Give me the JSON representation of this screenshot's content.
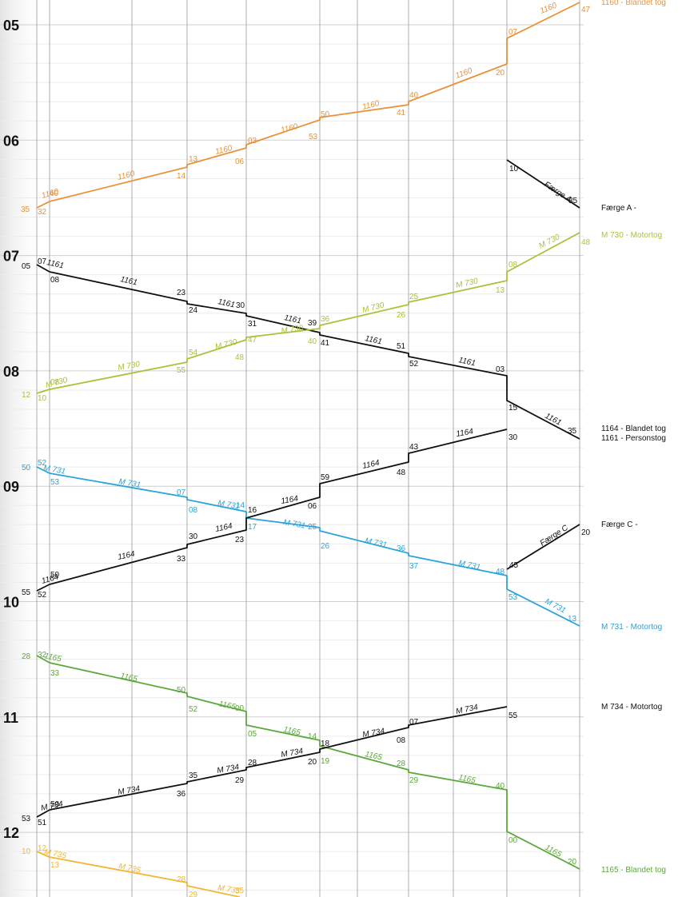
{
  "hours": [
    "05",
    "06",
    "07",
    "08",
    "09",
    "10",
    "11",
    "12"
  ],
  "colors": {
    "orange": "#e8923a",
    "black": "#111111",
    "lime": "#a9c23a",
    "blue": "#2aa3dc",
    "green": "#5aa83a",
    "yellow": "#f2b632"
  },
  "trains": [
    {
      "id": "t1160",
      "color": "orange",
      "points": [
        [
          46,
          260
        ],
        [
          62,
          252
        ],
        [
          234,
          209
        ],
        [
          234,
          206
        ],
        [
          308,
          185
        ],
        [
          308,
          181
        ],
        [
          400,
          150
        ],
        [
          400,
          147
        ],
        [
          511,
          131
        ],
        [
          511,
          127
        ],
        [
          634,
          80
        ],
        [
          634,
          48
        ],
        [
          725,
          3
        ]
      ],
      "times": [
        [
          "35",
          26,
          265
        ],
        [
          "32",
          47,
          268
        ],
        [
          "40",
          62,
          245
        ],
        [
          "14",
          221,
          223
        ],
        [
          "13",
          236,
          202
        ],
        [
          "06",
          294,
          205
        ],
        [
          "03",
          310,
          179
        ],
        [
          "53",
          386,
          174
        ],
        [
          "50",
          401,
          146
        ],
        [
          "41",
          496,
          144
        ],
        [
          "40",
          512,
          122
        ],
        [
          "20",
          620,
          94
        ],
        [
          "07",
          636,
          43
        ],
        [
          "47",
          727,
          15
        ]
      ],
      "labels": [
        [
          "1160",
          53,
          248,
          -16
        ],
        [
          "1160",
          148,
          225,
          -14
        ],
        [
          "1160",
          270,
          193,
          -14
        ],
        [
          "1160",
          352,
          166,
          -14
        ],
        [
          "1160",
          454,
          137,
          -14
        ],
        [
          "1160",
          571,
          98,
          -20
        ],
        [
          "1160",
          677,
          17,
          -22
        ]
      ],
      "legend": [
        {
          "text": "1160 - Blandet tog",
          "y": 6
        }
      ]
    },
    {
      "id": "tA",
      "color": "black",
      "points": [
        [
          634,
          200
        ],
        [
          725,
          260
        ]
      ],
      "times": [
        [
          "10",
          637,
          214
        ],
        [
          "35",
          711,
          254
        ]
      ],
      "labels": [
        [
          "Færge A",
          680,
          232,
          33
        ]
      ],
      "legend": [
        {
          "text": "Færge A -",
          "y": 263
        }
      ]
    },
    {
      "id": "t1161",
      "color": "black",
      "points": [
        [
          46,
          331
        ],
        [
          62,
          340
        ],
        [
          234,
          377
        ],
        [
          234,
          380
        ],
        [
          308,
          392
        ],
        [
          308,
          395
        ],
        [
          400,
          416
        ],
        [
          400,
          419
        ],
        [
          511,
          442
        ],
        [
          511,
          446
        ],
        [
          634,
          470
        ],
        [
          634,
          501
        ],
        [
          725,
          549
        ]
      ],
      "times": [
        [
          "05",
          27,
          336
        ],
        [
          "07",
          47,
          330
        ],
        [
          "08",
          63,
          353
        ],
        [
          "23",
          221,
          369
        ],
        [
          "24",
          236,
          391
        ],
        [
          "30",
          295,
          385
        ],
        [
          "31",
          310,
          408
        ],
        [
          "39",
          385,
          407
        ],
        [
          "41",
          401,
          432
        ],
        [
          "51",
          496,
          436
        ],
        [
          "52",
          512,
          458
        ],
        [
          "03",
          620,
          465
        ],
        [
          "15",
          636,
          513
        ],
        [
          "35",
          710,
          542
        ]
      ],
      "labels": [
        [
          "1161",
          58,
          331,
          12
        ],
        [
          "1161",
          150,
          352,
          12
        ],
        [
          "1161",
          272,
          380,
          12
        ],
        [
          "1161",
          355,
          400,
          12
        ],
        [
          "1161",
          456,
          426,
          12
        ],
        [
          "1161",
          573,
          453,
          12
        ],
        [
          "1161",
          681,
          522,
          28
        ]
      ],
      "legend": [
        {
          "text": "1164 - Blandet tog",
          "y": 539
        },
        {
          "text": "1161 - Personstog",
          "y": 551
        }
      ]
    },
    {
      "id": "tM730",
      "color": "lime",
      "points": [
        [
          46,
          492
        ],
        [
          62,
          487
        ],
        [
          234,
          453
        ],
        [
          234,
          449
        ],
        [
          308,
          425
        ],
        [
          308,
          422
        ],
        [
          400,
          411
        ],
        [
          400,
          407
        ],
        [
          511,
          381
        ],
        [
          511,
          378
        ],
        [
          634,
          351
        ],
        [
          634,
          340
        ],
        [
          725,
          291
        ]
      ],
      "times": [
        [
          "12",
          27,
          497
        ],
        [
          "10",
          47,
          501
        ],
        [
          "08",
          63,
          481
        ],
        [
          "55",
          221,
          466
        ],
        [
          "54",
          236,
          444
        ],
        [
          "48",
          294,
          450
        ],
        [
          "47",
          310,
          428
        ],
        [
          "40",
          385,
          430
        ],
        [
          "36",
          401,
          402
        ],
        [
          "26",
          496,
          397
        ],
        [
          "25",
          512,
          374
        ],
        [
          "13",
          620,
          366
        ],
        [
          "08",
          636,
          334
        ],
        [
          "48",
          727,
          306
        ]
      ],
      "labels": [
        [
          "M 730",
          58,
          485,
          -15
        ],
        [
          "M 730",
          148,
          463,
          -10
        ],
        [
          "M 730",
          270,
          437,
          -14
        ],
        [
          "M 730",
          352,
          417,
          -8
        ],
        [
          "M 730",
          454,
          391,
          -14
        ],
        [
          "M 730",
          571,
          360,
          -12
        ],
        [
          "M 730",
          676,
          311,
          -27
        ]
      ],
      "legend": [
        {
          "text": "M 730 - Motortog",
          "y": 297
        }
      ]
    },
    {
      "id": "tM731",
      "color": "blue",
      "points": [
        [
          46,
          584
        ],
        [
          62,
          592
        ],
        [
          234,
          622
        ],
        [
          234,
          625
        ],
        [
          308,
          640
        ],
        [
          308,
          648
        ],
        [
          400,
          660
        ],
        [
          400,
          664
        ],
        [
          511,
          692
        ],
        [
          511,
          695
        ],
        [
          634,
          720
        ],
        [
          634,
          737
        ],
        [
          725,
          783
        ]
      ],
      "times": [
        [
          "50",
          27,
          588
        ],
        [
          "52",
          47,
          582
        ],
        [
          "53",
          63,
          606
        ],
        [
          "07",
          221,
          619
        ],
        [
          "08",
          236,
          641
        ],
        [
          "14",
          295,
          635
        ],
        [
          "17",
          310,
          662
        ],
        [
          "25",
          385,
          662
        ],
        [
          "26",
          401,
          686
        ],
        [
          "36",
          496,
          689
        ],
        [
          "37",
          512,
          711
        ],
        [
          "48",
          620,
          718
        ],
        [
          "53",
          636,
          750
        ],
        [
          "13",
          710,
          777
        ]
      ],
      "labels": [
        [
          "M 731",
          54,
          588,
          10
        ],
        [
          "M 731",
          148,
          605,
          10
        ],
        [
          "M 731",
          272,
          632,
          10
        ],
        [
          "M 731",
          354,
          656,
          10
        ],
        [
          "M 731",
          456,
          679,
          12
        ],
        [
          "M 731",
          573,
          707,
          12
        ],
        [
          "M 731",
          681,
          754,
          28
        ]
      ],
      "legend": [
        {
          "text": "M 731 - Motortog",
          "y": 787
        }
      ]
    },
    {
      "id": "t1164",
      "color": "black",
      "points": [
        [
          46,
          739
        ],
        [
          62,
          731
        ],
        [
          234,
          685
        ],
        [
          234,
          681
        ],
        [
          308,
          663
        ],
        [
          308,
          648
        ],
        [
          400,
          622
        ],
        [
          400,
          605
        ],
        [
          511,
          578
        ],
        [
          511,
          567
        ],
        [
          634,
          537
        ]
      ],
      "times": [
        [
          "55",
          27,
          744
        ],
        [
          "52",
          47,
          747
        ],
        [
          "50",
          63,
          722
        ],
        [
          "33",
          221,
          702
        ],
        [
          "30",
          236,
          674
        ],
        [
          "23",
          294,
          678
        ],
        [
          "16",
          310,
          641
        ],
        [
          "06",
          385,
          636
        ],
        [
          "59",
          401,
          600
        ],
        [
          "48",
          496,
          594
        ],
        [
          "43",
          512,
          562
        ],
        [
          "30",
          636,
          550
        ]
      ],
      "labels": [
        [
          "1164",
          53,
          730,
          -16
        ],
        [
          "1164",
          148,
          700,
          -12
        ],
        [
          "1164",
          270,
          665,
          -12
        ],
        [
          "1164",
          352,
          630,
          -10
        ],
        [
          "1164",
          454,
          586,
          -12
        ],
        [
          "1164",
          571,
          546,
          -10
        ]
      ],
      "legend": []
    },
    {
      "id": "tC",
      "color": "black",
      "points": [
        [
          634,
          712
        ],
        [
          725,
          656
        ]
      ],
      "times": [
        [
          "45",
          637,
          710
        ],
        [
          "20",
          727,
          669
        ]
      ],
      "labels": [
        [
          "Færge C",
          678,
          683,
          -33
        ]
      ],
      "legend": [
        {
          "text": "Færge C -",
          "y": 659
        }
      ]
    },
    {
      "id": "t1165",
      "color": "green",
      "points": [
        [
          46,
          820
        ],
        [
          62,
          829
        ],
        [
          234,
          867
        ],
        [
          234,
          871
        ],
        [
          308,
          890
        ],
        [
          308,
          907
        ],
        [
          400,
          926
        ],
        [
          400,
          933
        ],
        [
          511,
          963
        ],
        [
          511,
          966
        ],
        [
          634,
          988
        ],
        [
          634,
          1040
        ],
        [
          725,
          1087
        ]
      ],
      "times": [
        [
          "28",
          27,
          824
        ],
        [
          "32",
          47,
          822
        ],
        [
          "33",
          63,
          845
        ],
        [
          "50",
          221,
          866
        ],
        [
          "52",
          236,
          890
        ],
        [
          "00",
          294,
          889
        ],
        [
          "05",
          310,
          921
        ],
        [
          "14",
          385,
          924
        ],
        [
          "19",
          401,
          955
        ],
        [
          "28",
          496,
          958
        ],
        [
          "29",
          512,
          979
        ],
        [
          "40",
          620,
          986
        ],
        [
          "00",
          636,
          1054
        ],
        [
          "20",
          710,
          1081
        ]
      ],
      "labels": [
        [
          "1165",
          55,
          823,
          12
        ],
        [
          "1165",
          150,
          848,
          12
        ],
        [
          "1165",
          273,
          883,
          12
        ],
        [
          "1165",
          354,
          915,
          12
        ],
        [
          "1165",
          456,
          946,
          12
        ],
        [
          "1165",
          573,
          975,
          12
        ],
        [
          "1165",
          681,
          1062,
          28
        ]
      ],
      "legend": [
        {
          "text": "1165 - Blandet tog",
          "y": 1091
        }
      ]
    },
    {
      "id": "tM734",
      "color": "black",
      "points": [
        [
          46,
          1022
        ],
        [
          62,
          1013
        ],
        [
          234,
          980
        ],
        [
          234,
          978
        ],
        [
          308,
          963
        ],
        [
          308,
          960
        ],
        [
          400,
          941
        ],
        [
          400,
          937
        ],
        [
          511,
          910
        ],
        [
          511,
          907
        ],
        [
          634,
          884
        ]
      ],
      "times": [
        [
          "53",
          27,
          1027
        ],
        [
          "51",
          47,
          1032
        ],
        [
          "50",
          63,
          1009
        ],
        [
          "36",
          221,
          996
        ],
        [
          "35",
          236,
          973
        ],
        [
          "29",
          294,
          979
        ],
        [
          "28",
          310,
          957
        ],
        [
          "20",
          385,
          956
        ],
        [
          "18",
          401,
          933
        ],
        [
          "08",
          496,
          929
        ],
        [
          "07",
          512,
          906
        ],
        [
          "55",
          636,
          898
        ]
      ],
      "labels": [
        [
          "M 734",
          52,
          1014,
          -12
        ],
        [
          "M 734",
          148,
          994,
          -10
        ],
        [
          "M 734",
          272,
          967,
          -10
        ],
        [
          "M 734",
          352,
          947,
          -10
        ],
        [
          "M 734",
          454,
          922,
          -10
        ],
        [
          "M 734",
          571,
          893,
          -12
        ]
      ],
      "legend": [
        {
          "text": "M 734 - Motortog",
          "y": 887
        }
      ]
    },
    {
      "id": "tM735",
      "color": "yellow",
      "points": [
        [
          46,
          1065
        ],
        [
          62,
          1072
        ],
        [
          234,
          1104
        ],
        [
          234,
          1108
        ],
        [
          300,
          1122
        ]
      ],
      "times": [
        [
          "10",
          27,
          1068
        ],
        [
          "12",
          47,
          1064
        ],
        [
          "13",
          63,
          1085
        ],
        [
          "28",
          221,
          1103
        ],
        [
          "29",
          236,
          1122
        ],
        [
          "35",
          294,
          1117
        ]
      ],
      "labels": [
        [
          "M 735",
          55,
          1068,
          12
        ],
        [
          "M 735",
          148,
          1086,
          12
        ],
        [
          "M 735",
          272,
          1113,
          10
        ]
      ],
      "legend": []
    }
  ]
}
